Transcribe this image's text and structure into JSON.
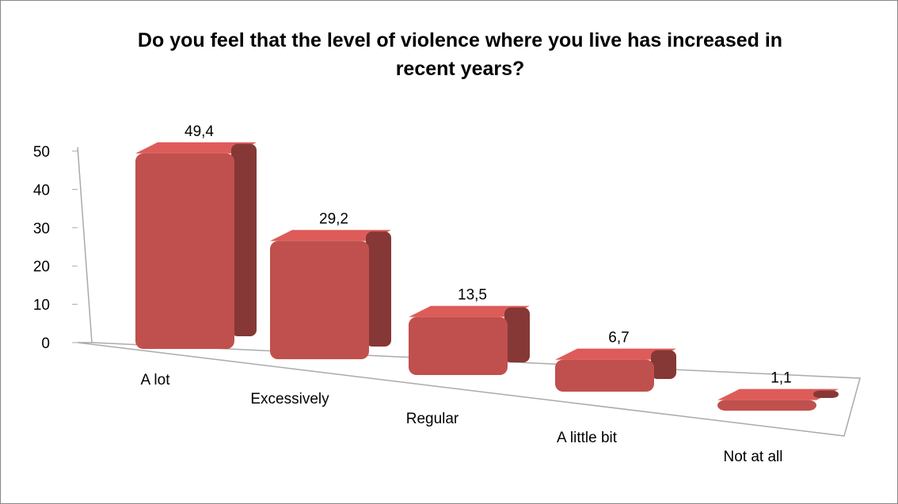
{
  "chart_data": {
    "type": "bar3d",
    "title": "Do you feel that the level of violence where you live has increased in recent years?",
    "categories": [
      "A lot",
      "Excessively",
      "Regular",
      "A little bit",
      "Not at all"
    ],
    "values": [
      49.4,
      29.2,
      13.5,
      6.7,
      1.1
    ],
    "value_labels": [
      "49,4",
      "29,2",
      "13,5",
      "6,7",
      "1,1"
    ],
    "color": "#c0504d",
    "ylim": [
      0,
      50
    ],
    "yticks": [
      0,
      10,
      20,
      30,
      40,
      50
    ]
  }
}
